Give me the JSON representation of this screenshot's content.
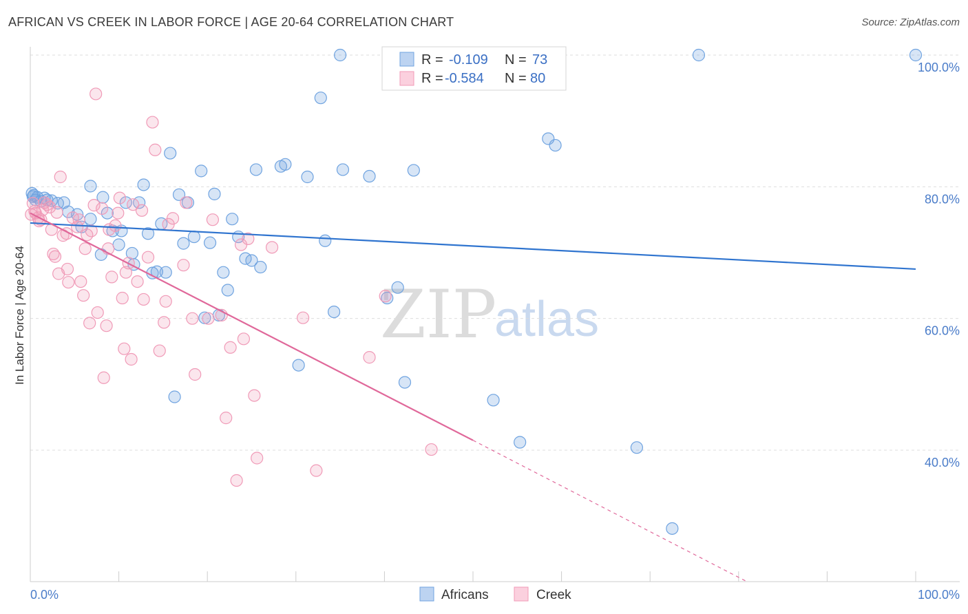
{
  "title": "AFRICAN VS CREEK IN LABOR FORCE | AGE 20-64 CORRELATION CHART",
  "source": "Source: ZipAtlas.com",
  "watermark": {
    "zip": "ZIP",
    "atlas": "atlas"
  },
  "legend": {
    "rows": [
      {
        "r_label": "R =",
        "r_value": "-0.109",
        "n_label": "N =",
        "n_value": "73"
      },
      {
        "r_label": "R =",
        "r_value": "-0.584",
        "n_label": "N =",
        "n_value": "80"
      }
    ]
  },
  "bottom_legend": [
    "Africans",
    "Creek"
  ],
  "chart_data": {
    "type": "scatter",
    "title": "AFRICAN VS CREEK IN LABOR FORCE | AGE 20-64 CORRELATION CHART",
    "xlabel": "",
    "ylabel": "In Labor Force | Age 20-64",
    "xlim": [
      0,
      100
    ],
    "ylim": [
      20,
      102
    ],
    "x_tick_labels": [
      "0.0%",
      "100.0%"
    ],
    "y_ticks": [
      40,
      60,
      80,
      100
    ],
    "y_tick_labels": [
      "40.0%",
      "60.0%",
      "80.0%",
      "100.0%"
    ],
    "colors": {
      "africans": "#6fa3e0",
      "creek": "#f09ab7",
      "africans_line": "#2f74cf",
      "creek_line": "#e0689a"
    },
    "series": [
      {
        "name": "Africans",
        "r": -0.109,
        "n": 73,
        "trend": {
          "x": [
            0,
            100
          ],
          "y": [
            74.5,
            67.5
          ]
        },
        "points": [
          [
            0.3,
            78.5
          ],
          [
            0.6,
            78
          ],
          [
            0.8,
            78.4
          ],
          [
            1.2,
            77.8
          ],
          [
            1.6,
            78.3
          ],
          [
            1.9,
            78.0
          ],
          [
            2.4,
            77.9
          ],
          [
            3.1,
            77.5
          ],
          [
            3.8,
            77.6
          ],
          [
            4.3,
            76.2
          ],
          [
            5.3,
            75.8
          ],
          [
            5.8,
            73.9
          ],
          [
            6.8,
            75.1
          ],
          [
            6.8,
            80.1
          ],
          [
            8.2,
            78.4
          ],
          [
            8.7,
            76.0
          ],
          [
            8.0,
            69.7
          ],
          [
            9.3,
            73.3
          ],
          [
            10.0,
            71.2
          ],
          [
            10.3,
            73.3
          ],
          [
            10.8,
            77.6
          ],
          [
            11.5,
            69.9
          ],
          [
            11.7,
            68.2
          ],
          [
            12.3,
            77.6
          ],
          [
            12.8,
            80.3
          ],
          [
            13.3,
            72.9
          ],
          [
            13.8,
            66.9
          ],
          [
            14.3,
            67.1
          ],
          [
            14.8,
            74.4
          ],
          [
            15.3,
            67.0
          ],
          [
            15.8,
            85.1
          ],
          [
            16.3,
            48.1
          ],
          [
            16.8,
            78.8
          ],
          [
            17.3,
            71.4
          ],
          [
            17.8,
            77.6
          ],
          [
            18.5,
            72.4
          ],
          [
            19.3,
            82.4
          ],
          [
            19.7,
            60.1
          ],
          [
            20.3,
            71.5
          ],
          [
            20.8,
            78.9
          ],
          [
            21.3,
            60.5
          ],
          [
            21.8,
            67.0
          ],
          [
            22.3,
            64.3
          ],
          [
            22.8,
            75.1
          ],
          [
            23.5,
            72.4
          ],
          [
            24.3,
            69.1
          ],
          [
            25.0,
            68.8
          ],
          [
            25.5,
            82.6
          ],
          [
            26.0,
            67.8
          ],
          [
            28.3,
            83.1
          ],
          [
            28.8,
            83.4
          ],
          [
            30.3,
            52.9
          ],
          [
            31.3,
            81.5
          ],
          [
            32.8,
            93.5
          ],
          [
            33.3,
            71.8
          ],
          [
            34.3,
            61.0
          ],
          [
            35.0,
            100.0
          ],
          [
            35.3,
            82.6
          ],
          [
            38.3,
            81.6
          ],
          [
            40.3,
            63.1
          ],
          [
            41.5,
            64.7
          ],
          [
            42.3,
            50.3
          ],
          [
            43.3,
            82.5
          ],
          [
            52.3,
            47.6
          ],
          [
            55.3,
            41.2
          ],
          [
            58.5,
            87.3
          ],
          [
            59.3,
            86.3
          ],
          [
            68.5,
            40.4
          ],
          [
            72.5,
            28.1
          ],
          [
            75.5,
            100.0
          ],
          [
            100.0,
            100.0
          ],
          [
            0.2,
            79.0
          ],
          [
            0.4,
            78.7
          ]
        ]
      },
      {
        "name": "Creek",
        "r": -0.584,
        "n": 80,
        "trend": {
          "x": [
            0,
            50
          ],
          "y": [
            76.0,
            41.5
          ]
        },
        "trend_dashed": {
          "x": [
            50,
            81
          ],
          "y": [
            41.5,
            20.0
          ]
        },
        "points": [
          [
            0.3,
            77.5
          ],
          [
            0.6,
            76.0
          ],
          [
            0.9,
            75.3
          ],
          [
            1.2,
            75.0
          ],
          [
            1.6,
            77.6
          ],
          [
            1.9,
            77.3
          ],
          [
            2.2,
            76.9
          ],
          [
            2.4,
            73.5
          ],
          [
            2.6,
            69.8
          ],
          [
            2.8,
            69.4
          ],
          [
            3.0,
            76.1
          ],
          [
            3.2,
            66.8
          ],
          [
            3.4,
            81.5
          ],
          [
            3.7,
            72.6
          ],
          [
            4.1,
            72.9
          ],
          [
            4.2,
            67.5
          ],
          [
            4.3,
            65.5
          ],
          [
            4.8,
            75.3
          ],
          [
            5.3,
            73.9
          ],
          [
            5.5,
            75.0
          ],
          [
            5.7,
            65.6
          ],
          [
            6.0,
            63.5
          ],
          [
            6.2,
            70.6
          ],
          [
            6.4,
            72.7
          ],
          [
            6.7,
            59.3
          ],
          [
            6.9,
            73.3
          ],
          [
            7.2,
            77.2
          ],
          [
            7.4,
            94.1
          ],
          [
            7.6,
            60.9
          ],
          [
            8.1,
            76.7
          ],
          [
            8.3,
            51.0
          ],
          [
            8.6,
            58.9
          ],
          [
            8.8,
            70.6
          ],
          [
            8.9,
            73.5
          ],
          [
            9.2,
            66.3
          ],
          [
            9.6,
            74.1
          ],
          [
            9.9,
            76.0
          ],
          [
            10.1,
            78.3
          ],
          [
            10.4,
            63.1
          ],
          [
            10.6,
            55.4
          ],
          [
            10.8,
            67.0
          ],
          [
            11.1,
            68.4
          ],
          [
            11.4,
            53.8
          ],
          [
            11.6,
            77.3
          ],
          [
            12.1,
            65.6
          ],
          [
            12.6,
            76.4
          ],
          [
            12.8,
            62.9
          ],
          [
            13.3,
            69.3
          ],
          [
            13.8,
            89.8
          ],
          [
            14.1,
            85.6
          ],
          [
            14.6,
            55.1
          ],
          [
            15.1,
            59.4
          ],
          [
            15.3,
            62.6
          ],
          [
            15.6,
            74.3
          ],
          [
            16.1,
            75.2
          ],
          [
            17.3,
            68.1
          ],
          [
            17.6,
            77.6
          ],
          [
            18.3,
            60.0
          ],
          [
            18.6,
            51.5
          ],
          [
            20.1,
            60.0
          ],
          [
            20.6,
            75.0
          ],
          [
            21.6,
            60.5
          ],
          [
            22.1,
            44.9
          ],
          [
            22.6,
            55.6
          ],
          [
            23.3,
            35.4
          ],
          [
            23.8,
            71.2
          ],
          [
            24.1,
            56.9
          ],
          [
            24.6,
            72.1
          ],
          [
            25.3,
            48.3
          ],
          [
            25.6,
            38.8
          ],
          [
            27.3,
            70.8
          ],
          [
            30.8,
            60.1
          ],
          [
            32.3,
            36.9
          ],
          [
            38.3,
            54.1
          ],
          [
            40.1,
            63.4
          ],
          [
            45.3,
            40.1
          ],
          [
            0.1,
            75.8
          ],
          [
            0.5,
            76.3
          ],
          [
            1.0,
            74.8
          ],
          [
            1.4,
            76.5
          ]
        ]
      }
    ]
  }
}
